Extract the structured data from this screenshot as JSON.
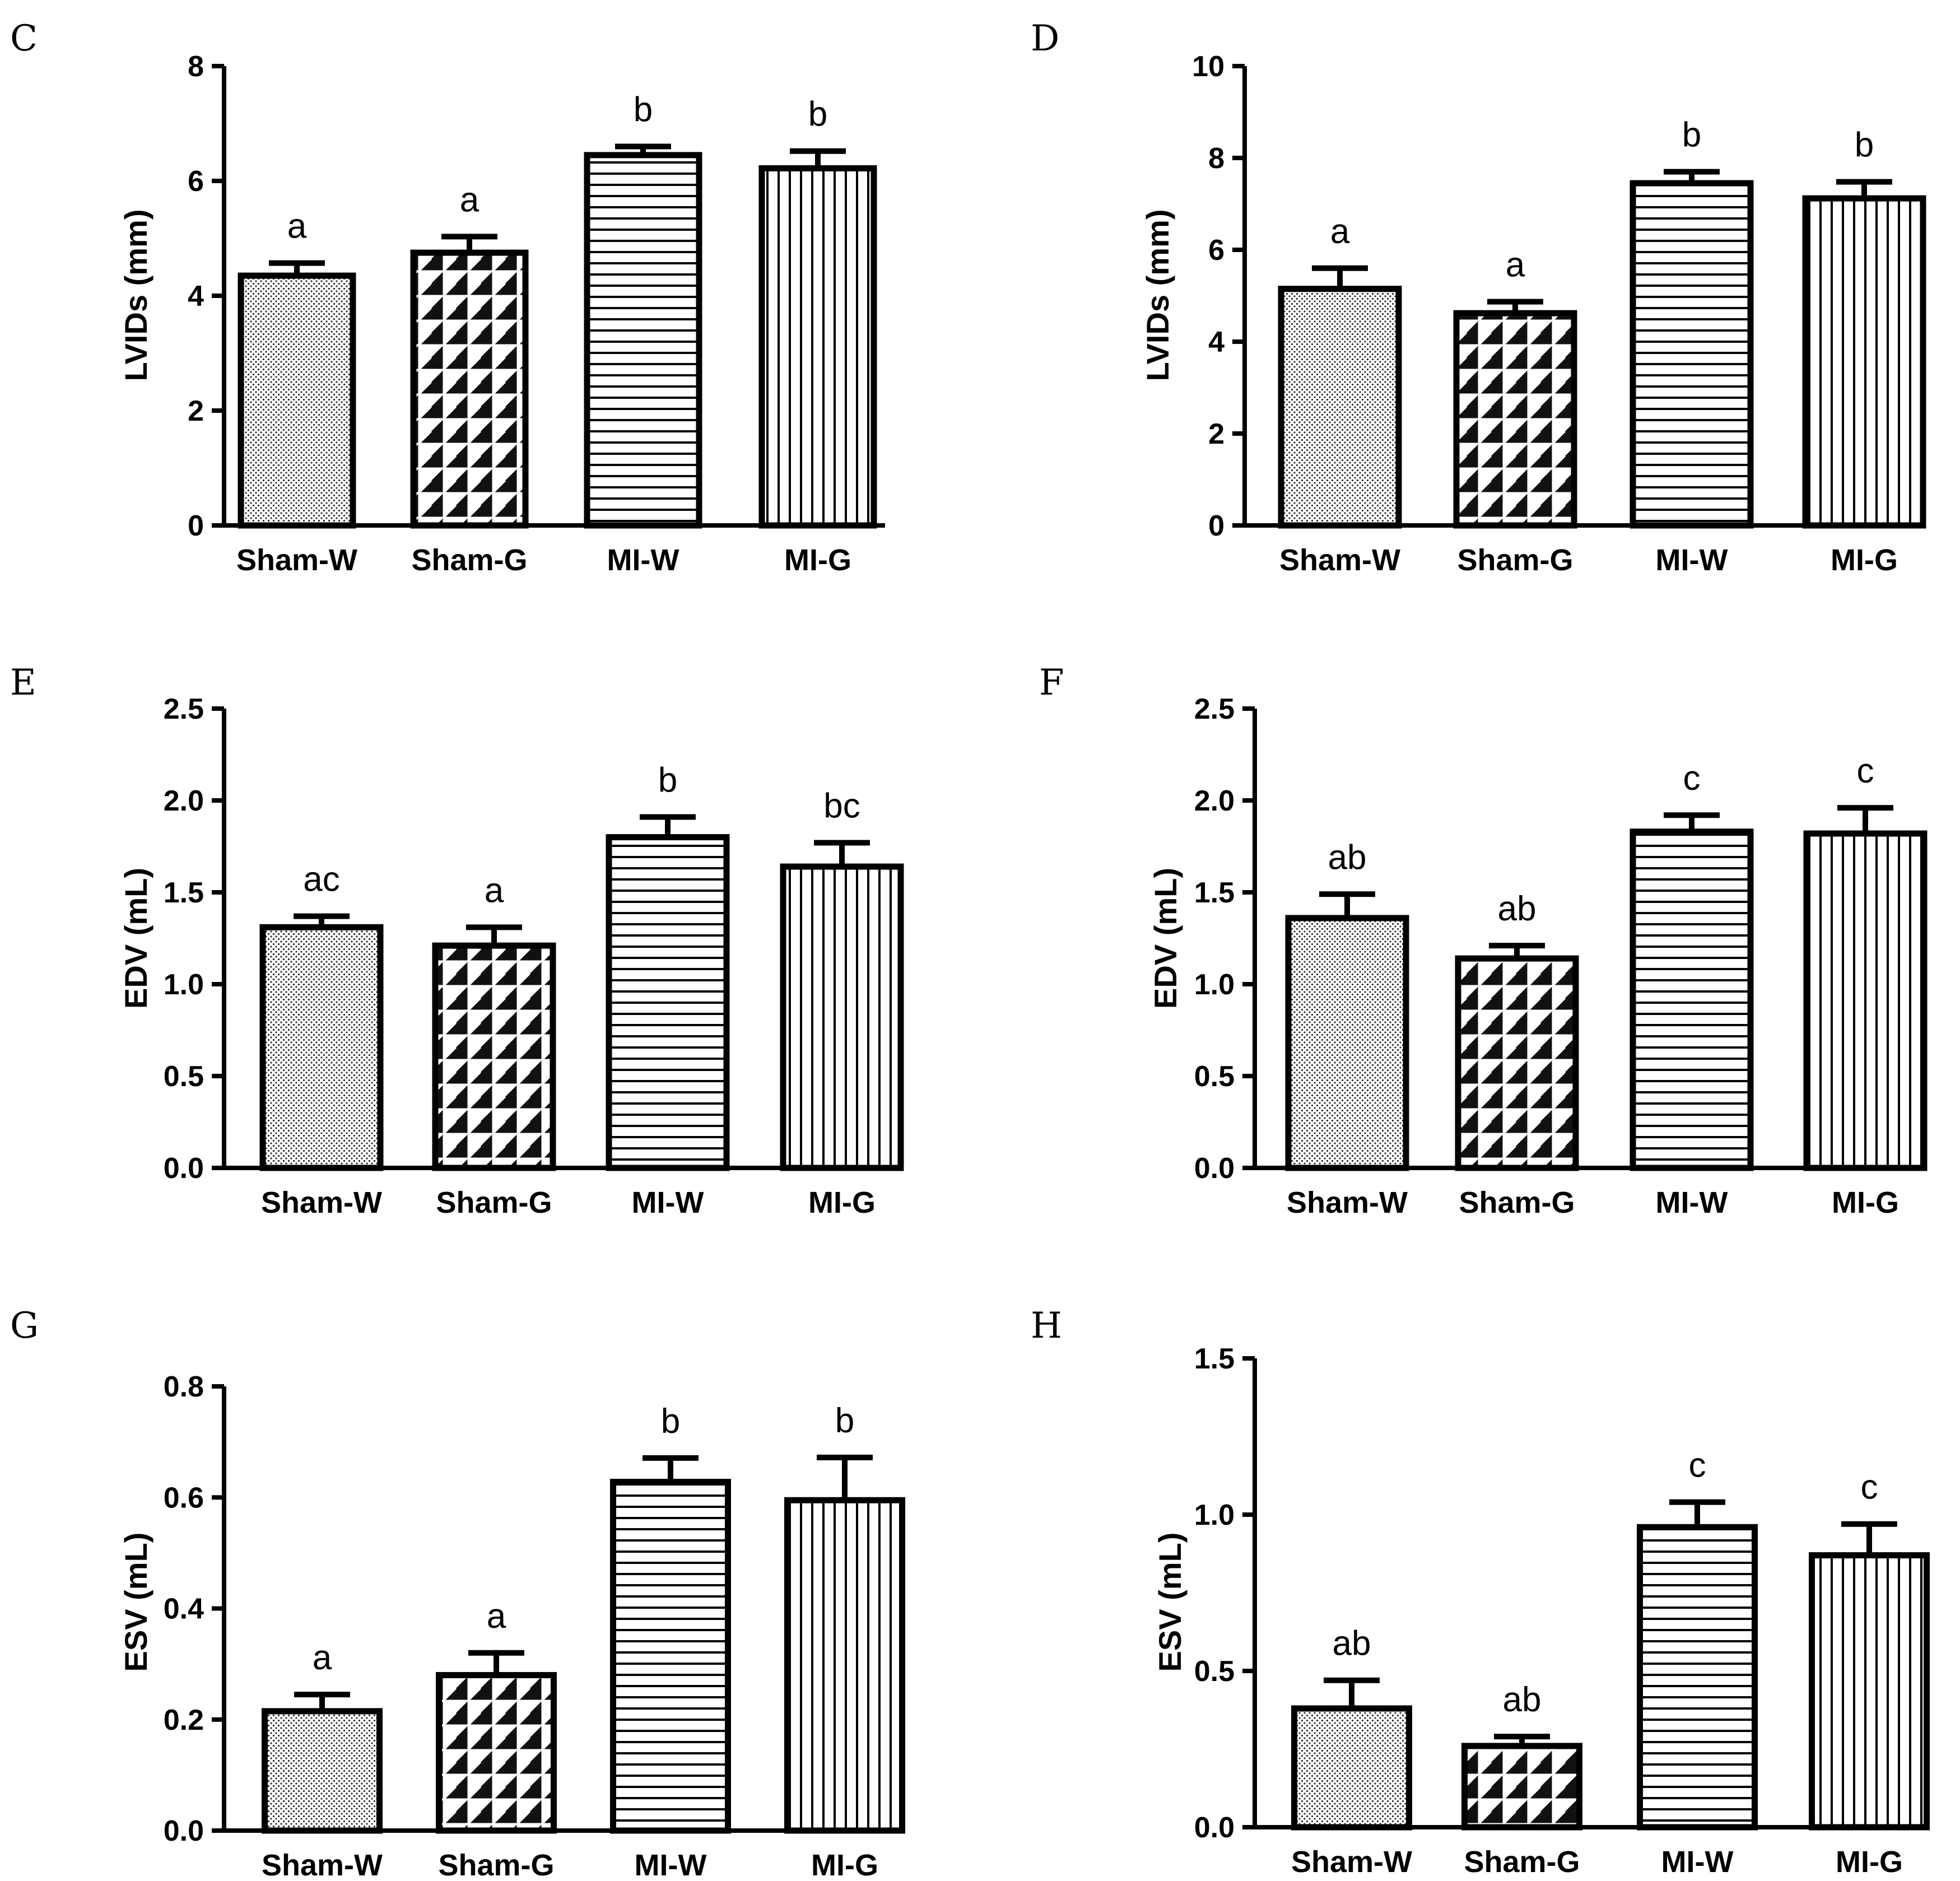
{
  "chart_data": [
    {
      "panel": "C",
      "type": "bar",
      "ylabel": "LVIDs (mm)",
      "ylim": [
        0,
        8
      ],
      "yticks": [
        "0",
        "2",
        "4",
        "6",
        "8"
      ],
      "categories": [
        "Sham-W",
        "Sham-G",
        "MI-W",
        "MI-G"
      ],
      "values": [
        4.35,
        4.75,
        6.45,
        6.22
      ],
      "errors": [
        0.22,
        0.28,
        0.15,
        0.3
      ],
      "significance": [
        "a",
        "a",
        "b",
        "b"
      ]
    },
    {
      "panel": "D",
      "type": "bar",
      "ylabel": "LVIDs (mm)",
      "ylim": [
        0,
        10
      ],
      "yticks": [
        "0",
        "2",
        "4",
        "6",
        "8",
        "10"
      ],
      "categories": [
        "Sham-W",
        "Sham-G",
        "MI-W",
        "MI-G"
      ],
      "values": [
        5.15,
        4.62,
        7.45,
        7.12
      ],
      "errors": [
        0.45,
        0.25,
        0.25,
        0.36
      ],
      "significance": [
        "a",
        "a",
        "b",
        "b"
      ]
    },
    {
      "panel": "E",
      "type": "bar",
      "ylabel": "EDV (mL)",
      "ylim": [
        0,
        2.5
      ],
      "yticks": [
        "0.0",
        "0.5",
        "1.0",
        "1.5",
        "2.0",
        "2.5"
      ],
      "categories": [
        "Sham-W",
        "Sham-G",
        "MI-W",
        "MI-G"
      ],
      "values": [
        1.31,
        1.21,
        1.8,
        1.64
      ],
      "errors": [
        0.06,
        0.1,
        0.11,
        0.13
      ],
      "significance": [
        "ac",
        "a",
        "b",
        "bc"
      ]
    },
    {
      "panel": "F",
      "type": "bar",
      "ylabel": "EDV (mL)",
      "ylim": [
        0,
        2.5
      ],
      "yticks": [
        "0.0",
        "0.5",
        "1.0",
        "1.5",
        "2.0",
        "2.5"
      ],
      "categories": [
        "Sham-W",
        "Sham-G",
        "MI-W",
        "MI-G"
      ],
      "values": [
        1.36,
        1.14,
        1.83,
        1.82
      ],
      "errors": [
        0.13,
        0.07,
        0.09,
        0.14
      ],
      "significance": [
        "ab",
        "ab",
        "c",
        "c"
      ]
    },
    {
      "panel": "G",
      "type": "bar",
      "ylabel": "ESV (mL)",
      "ylim": [
        0,
        0.8
      ],
      "yticks": [
        "0.0",
        "0.2",
        "0.4",
        "0.6",
        "0.8"
      ],
      "categories": [
        "Sham-W",
        "Sham-G",
        "MI-W",
        "MI-G"
      ],
      "values": [
        0.215,
        0.28,
        0.628,
        0.595
      ],
      "errors": [
        0.03,
        0.04,
        0.043,
        0.077
      ],
      "significance": [
        "a",
        "a",
        "b",
        "b"
      ]
    },
    {
      "panel": "H",
      "type": "bar",
      "ylabel": "ESV (mL)",
      "ylim": [
        0,
        1.5
      ],
      "yticks": [
        "0.0",
        "0.5",
        "1.0",
        "1.5"
      ],
      "categories": [
        "Sham-W",
        "Sham-G",
        "MI-W",
        "MI-G"
      ],
      "values": [
        0.38,
        0.26,
        0.96,
        0.87
      ],
      "errors": [
        0.09,
        0.03,
        0.08,
        0.1
      ],
      "significance": [
        "ab",
        "ab",
        "c",
        "c"
      ]
    }
  ],
  "patterns": [
    "dots",
    "diagonal",
    "horizontal",
    "vertical"
  ]
}
